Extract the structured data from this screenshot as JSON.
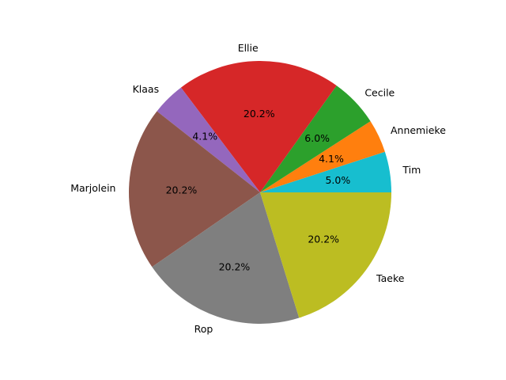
{
  "chart_data": {
    "type": "pie",
    "title": "",
    "slices": [
      {
        "label": "Tim",
        "value": 5.0,
        "pct": "5.0%",
        "color": "#17becf"
      },
      {
        "label": "Annemieke",
        "value": 4.1,
        "pct": "4.1%",
        "color": "#ff7f0e"
      },
      {
        "label": "Cecile",
        "value": 6.0,
        "pct": "6.0%",
        "color": "#2ca02c"
      },
      {
        "label": "Ellie",
        "value": 20.2,
        "pct": "20.2%",
        "color": "#d62728"
      },
      {
        "label": "Klaas",
        "value": 4.1,
        "pct": "4.1%",
        "color": "#9467bd"
      },
      {
        "label": "Marjolein",
        "value": 20.2,
        "pct": "20.2%",
        "color": "#8c564b"
      },
      {
        "label": "Rop",
        "value": 20.2,
        "pct": "20.2%",
        "color": "#7f7f7f"
      },
      {
        "label": "Taeke",
        "value": 20.2,
        "pct": "20.2%",
        "color": "#bcbd22"
      }
    ]
  }
}
